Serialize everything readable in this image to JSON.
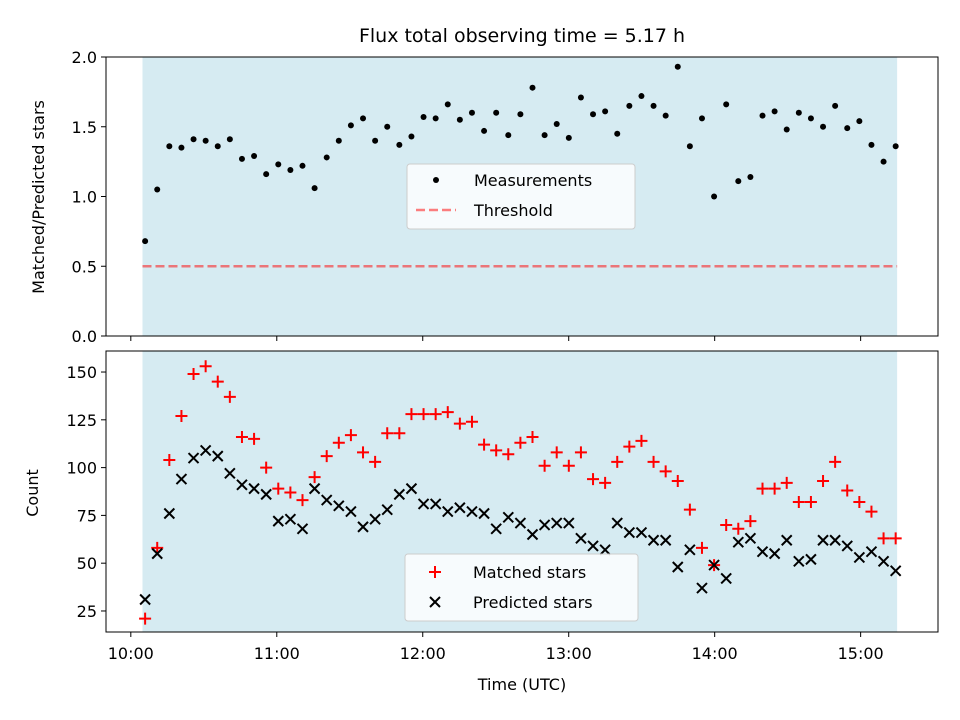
{
  "chart_data": {
    "type": "scatter",
    "title": "Flux total observing time = 5.17 h",
    "xlabel": "Time (UTC)",
    "x_unit": "hours since 10:00 UTC",
    "xlim": [
      -0.17,
      5.53
    ],
    "xticks": [
      {
        "value": 0,
        "label": "10:00"
      },
      {
        "value": 1,
        "label": "11:00"
      },
      {
        "value": 2,
        "label": "12:00"
      },
      {
        "value": 3,
        "label": "13:00"
      },
      {
        "value": 4,
        "label": "14:00"
      },
      {
        "value": 5,
        "label": "15:00"
      }
    ],
    "observing_window": [
      0.08,
      5.25
    ],
    "colors": {
      "span": "#add8e6",
      "measurements": "#000000",
      "threshold": "#ff0000",
      "matched": "#ff0000",
      "predicted": "#000000"
    },
    "top": {
      "ylabel": "Matched/Predicted stars",
      "ylim": [
        0,
        2.0
      ],
      "yticks": [
        "0.0",
        "0.5",
        "1.0",
        "1.5",
        "2.0"
      ],
      "legend": {
        "position": "center",
        "measurements": "Measurements",
        "threshold": "Threshold"
      },
      "threshold": 0.5,
      "measurements": [
        0.68,
        1.05,
        1.36,
        1.35,
        1.41,
        1.4,
        1.36,
        1.41,
        1.27,
        1.29,
        1.16,
        1.23,
        1.19,
        1.22,
        1.06,
        1.28,
        1.4,
        1.51,
        1.56,
        1.4,
        1.5,
        1.37,
        1.43,
        1.57,
        1.56,
        1.66,
        1.55,
        1.6,
        1.47,
        1.6,
        1.44,
        1.59,
        1.78,
        1.44,
        1.52,
        1.42,
        1.71,
        1.59,
        1.61,
        1.45,
        1.65,
        1.72,
        1.65,
        1.58,
        1.93,
        1.36,
        1.56,
        1.0,
        1.66,
        1.11,
        1.14,
        1.58,
        1.61,
        1.48,
        1.6,
        1.56,
        1.5,
        1.65,
        1.49,
        1.54,
        1.37,
        1.25,
        1.36
      ]
    },
    "bottom": {
      "ylabel": "Count",
      "ylim": [
        14,
        161
      ],
      "yticks": [
        25,
        50,
        75,
        100,
        125,
        150
      ],
      "legend": {
        "position": "lower center",
        "matched": "Matched stars",
        "predicted": "Predicted stars"
      },
      "matched": [
        21,
        58,
        104,
        127,
        149,
        153,
        145,
        137,
        116,
        115,
        100,
        89,
        87,
        83,
        95,
        106,
        113,
        117,
        108,
        103,
        118,
        118,
        128,
        128,
        128,
        129,
        123,
        124,
        112,
        109,
        107,
        113,
        116,
        101,
        108,
        101,
        108,
        94,
        92,
        103,
        111,
        114,
        103,
        98,
        93,
        78,
        58,
        49,
        70,
        68,
        72,
        89,
        89,
        92,
        82,
        82,
        93,
        103,
        88,
        82,
        77,
        63,
        63
      ],
      "predicted": [
        31,
        55,
        76,
        94,
        105,
        109,
        106,
        97,
        91,
        89,
        86,
        72,
        73,
        68,
        89,
        83,
        80,
        77,
        69,
        73,
        78,
        86,
        89,
        81,
        81,
        77,
        79,
        77,
        76,
        68,
        74,
        71,
        65,
        70,
        71,
        71,
        63,
        59,
        57,
        71,
        66,
        66,
        62,
        62,
        48,
        57,
        37,
        49,
        42,
        61,
        63,
        56,
        55,
        62,
        51,
        52,
        62,
        62,
        59,
        53,
        56,
        51,
        46
      ]
    }
  }
}
